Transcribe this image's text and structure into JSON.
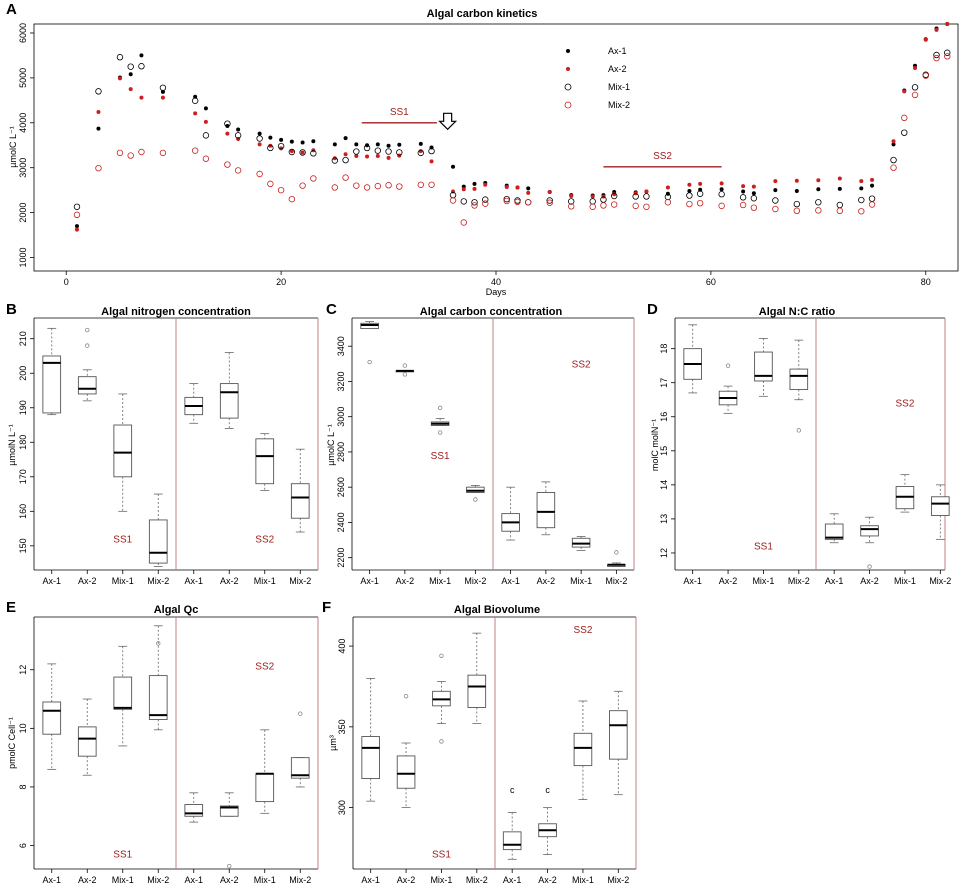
{
  "colors": {
    "black": "#000000",
    "red": "#cc1f1f",
    "divider": "#c08080",
    "box": "#555555",
    "ss_text": "#a02020"
  },
  "chart_data": [
    {
      "id": "A",
      "type": "scatter",
      "letter": "A",
      "title": "Algal carbon kinetics",
      "xlabel": "Days",
      "ylabel": "µmolC L⁻¹",
      "xlim": [
        -3,
        83
      ],
      "ylim": [
        700,
        6200
      ],
      "xticks": [
        "0",
        "20",
        "40",
        "60",
        "80"
      ],
      "yticks": [
        "1000",
        "2000",
        "3000",
        "4000",
        "5000",
        "6000"
      ],
      "annotations": [
        {
          "text": "SS1",
          "x1": 27.5,
          "x2": 34.5,
          "y": 4000
        },
        {
          "text": "SS2",
          "x1": 50.0,
          "x2": 61.0,
          "y": 3020
        }
      ],
      "arrow": {
        "x": 35.5,
        "y": 3900
      },
      "series": [
        {
          "name": "Ax-1",
          "style": "filled-black",
          "x": [
            1,
            3,
            5,
            6,
            7,
            9,
            12,
            13,
            15,
            16,
            18,
            19,
            20,
            21,
            22,
            23,
            25,
            26,
            27,
            28,
            29,
            30,
            31,
            33,
            34,
            36,
            37,
            38,
            39,
            41,
            42,
            43,
            45,
            47,
            49,
            50,
            51,
            53,
            54,
            56,
            58,
            59,
            61,
            63,
            64,
            66,
            68,
            70,
            72,
            74,
            75,
            77,
            78,
            79,
            80,
            81,
            82
          ],
          "y": [
            1700,
            3870,
            5010,
            5080,
            5500,
            4690,
            4580,
            4320,
            3930,
            3850,
            3760,
            3670,
            3620,
            3580,
            3560,
            3590,
            3520,
            3660,
            3520,
            3500,
            3520,
            3490,
            3510,
            3530,
            3450,
            3020,
            2580,
            2640,
            2660,
            2600,
            2560,
            2540,
            2460,
            2390,
            2380,
            2390,
            2460,
            2450,
            2470,
            2420,
            2480,
            2510,
            2520,
            2470,
            2430,
            2500,
            2480,
            2520,
            2530,
            2540,
            2600,
            3520,
            4720,
            5270,
            5860,
            6100,
            6200
          ]
        },
        {
          "name": "Ax-2",
          "style": "filled-red",
          "x": [
            1,
            3,
            5,
            6,
            7,
            9,
            12,
            13,
            15,
            16,
            18,
            19,
            20,
            21,
            22,
            23,
            25,
            26,
            27,
            28,
            29,
            30,
            31,
            33,
            34,
            36,
            37,
            38,
            39,
            41,
            42,
            43,
            45,
            47,
            49,
            50,
            51,
            53,
            54,
            56,
            58,
            59,
            61,
            63,
            64,
            66,
            68,
            70,
            72,
            74,
            75,
            77,
            78,
            79,
            80,
            81,
            82
          ],
          "y": [
            1620,
            4240,
            4990,
            4750,
            4560,
            4560,
            4210,
            4020,
            3760,
            3640,
            3520,
            3490,
            3430,
            3370,
            3340,
            3390,
            3210,
            3300,
            3260,
            3250,
            3260,
            3220,
            3270,
            3370,
            3140,
            2470,
            2520,
            2530,
            2620,
            2570,
            2560,
            2440,
            2460,
            2370,
            2360,
            2360,
            2410,
            2430,
            2470,
            2560,
            2620,
            2640,
            2650,
            2590,
            2580,
            2700,
            2710,
            2720,
            2760,
            2700,
            2730,
            3590,
            4700,
            5220,
            5850,
            6070,
            6200
          ]
        },
        {
          "name": "Mix-1",
          "style": "open-black",
          "x": [
            1,
            3,
            5,
            6,
            7,
            9,
            12,
            13,
            15,
            16,
            18,
            19,
            20,
            21,
            22,
            23,
            25,
            26,
            27,
            28,
            29,
            30,
            31,
            33,
            34,
            36,
            37,
            38,
            39,
            41,
            42,
            43,
            45,
            47,
            49,
            50,
            51,
            53,
            54,
            56,
            58,
            59,
            61,
            63,
            64,
            66,
            68,
            70,
            72,
            74,
            75,
            77,
            78,
            79,
            80,
            81,
            82
          ],
          "y": [
            2130,
            4700,
            5460,
            5250,
            5260,
            4780,
            4490,
            3720,
            3980,
            3720,
            3650,
            3440,
            3480,
            3350,
            3340,
            3320,
            3160,
            3170,
            3360,
            3440,
            3380,
            3360,
            3340,
            3330,
            3370,
            2390,
            2250,
            2230,
            2290,
            2300,
            2270,
            2230,
            2270,
            2250,
            2250,
            2290,
            2370,
            2360,
            2360,
            2350,
            2380,
            2420,
            2410,
            2340,
            2320,
            2270,
            2190,
            2230,
            2170,
            2280,
            2310,
            3170,
            3780,
            4790,
            5070,
            5510,
            5560
          ]
        },
        {
          "name": "Mix-2",
          "style": "open-red",
          "x": [
            1,
            3,
            5,
            6,
            7,
            9,
            12,
            13,
            15,
            16,
            18,
            19,
            20,
            21,
            22,
            23,
            25,
            26,
            27,
            28,
            29,
            30,
            31,
            33,
            34,
            36,
            37,
            38,
            39,
            41,
            42,
            43,
            45,
            47,
            49,
            50,
            51,
            53,
            54,
            56,
            58,
            59,
            61,
            63,
            64,
            66,
            68,
            70,
            72,
            74,
            75,
            77,
            78,
            79,
            80,
            81,
            82
          ],
          "y": [
            1950,
            2990,
            3330,
            3270,
            3350,
            3330,
            3380,
            3200,
            3070,
            2940,
            2860,
            2640,
            2500,
            2300,
            2600,
            2760,
            2560,
            2780,
            2600,
            2560,
            2590,
            2610,
            2580,
            2620,
            2620,
            2270,
            1780,
            2160,
            2200,
            2260,
            2240,
            2230,
            2220,
            2140,
            2130,
            2160,
            2180,
            2150,
            2130,
            2230,
            2190,
            2210,
            2150,
            2170,
            2110,
            2080,
            2040,
            2050,
            2040,
            2030,
            2180,
            3000,
            4110,
            4620,
            5050,
            5440,
            5480
          ]
        }
      ]
    },
    {
      "id": "B",
      "type": "box",
      "letter": "B",
      "title": "Algal nitrogen concentration",
      "ylabel": "µmolN L⁻¹",
      "ylim": [
        143,
        216
      ],
      "yticks": [
        150,
        160,
        170,
        180,
        190,
        200,
        210
      ],
      "categories": [
        "Ax-1",
        "Ax-2",
        "Mix-1",
        "Mix-2",
        "Ax-1",
        "Ax-2",
        "Mix-1",
        "Mix-2"
      ],
      "ss_labels": [
        {
          "text": "SS1",
          "cat": 2.5,
          "y": 151
        },
        {
          "text": "SS2",
          "cat": 6.5,
          "y": 151
        }
      ],
      "boxes": [
        {
          "min": 188,
          "q1": 188.5,
          "median": 203,
          "q3": 205,
          "max": 213,
          "out": []
        },
        {
          "min": 192,
          "q1": 194,
          "median": 195.5,
          "q3": 199,
          "max": 201,
          "out": [
            208,
            212.5
          ]
        },
        {
          "min": 160,
          "q1": 170,
          "median": 177,
          "q3": 185,
          "max": 194,
          "out": []
        },
        {
          "min": 144,
          "q1": 145,
          "median": 148,
          "q3": 157.5,
          "max": 165,
          "out": []
        },
        {
          "min": 185.5,
          "q1": 188,
          "median": 190.5,
          "q3": 193,
          "max": 197,
          "out": []
        },
        {
          "min": 184,
          "q1": 187,
          "median": 194.5,
          "q3": 197,
          "max": 206,
          "out": []
        },
        {
          "min": 166,
          "q1": 168,
          "median": 176,
          "q3": 181,
          "max": 182.5,
          "out": []
        },
        {
          "min": 154,
          "q1": 158,
          "median": 164,
          "q3": 168,
          "max": 178,
          "out": []
        }
      ]
    },
    {
      "id": "C",
      "type": "box",
      "letter": "C",
      "title": "Algal carbon concentration",
      "ylabel": "µmolC L⁻¹",
      "ylim": [
        2130,
        3560
      ],
      "yticks": [
        2200,
        2400,
        2600,
        2800,
        3000,
        3200,
        3400
      ],
      "categories": [
        "Ax-1",
        "Ax-2",
        "Mix-1",
        "Mix-2",
        "Ax-1",
        "Ax-2",
        "Mix-1",
        "Mix-2"
      ],
      "ss_labels": [
        {
          "text": "SS1",
          "cat": 2.5,
          "y": 2760
        },
        {
          "text": "SS2",
          "cat": 6.5,
          "y": 3280
        }
      ],
      "boxes": [
        {
          "min": 3500,
          "q1": 3500,
          "median": 3520,
          "q3": 3530,
          "max": 3540,
          "out": [
            3310
          ]
        },
        {
          "min": 3260,
          "q1": 3260,
          "median": 3260,
          "q3": 3260,
          "max": 3260,
          "out": [
            3290,
            3240
          ]
        },
        {
          "min": 2950,
          "q1": 2950,
          "median": 2960,
          "q3": 2970,
          "max": 2990,
          "out": [
            3050,
            2910
          ]
        },
        {
          "min": 2570,
          "q1": 2570,
          "median": 2580,
          "q3": 2600,
          "max": 2610,
          "out": [
            2530
          ]
        },
        {
          "min": 2300,
          "q1": 2350,
          "median": 2400,
          "q3": 2450,
          "max": 2600,
          "out": []
        },
        {
          "min": 2330,
          "q1": 2370,
          "median": 2460,
          "q3": 2570,
          "max": 2630,
          "out": []
        },
        {
          "min": 2240,
          "q1": 2260,
          "median": 2280,
          "q3": 2310,
          "max": 2320,
          "out": []
        },
        {
          "min": 2150,
          "q1": 2150,
          "median": 2160,
          "q3": 2160,
          "max": 2170,
          "out": [
            2230
          ]
        }
      ]
    },
    {
      "id": "D",
      "type": "box",
      "letter": "D",
      "title": "Algal N:C ratio",
      "ylabel": "molC molN⁻¹",
      "ylim": [
        11.5,
        18.9
      ],
      "yticks": [
        12,
        13,
        14,
        15,
        16,
        17,
        18
      ],
      "categories": [
        "Ax-1",
        "Ax-2",
        "Mix-1",
        "Mix-2",
        "Ax-1",
        "Ax-2",
        "Mix-1",
        "Mix-2"
      ],
      "ss_labels": [
        {
          "text": "SS1",
          "cat": 2.5,
          "y": 12.1
        },
        {
          "text": "SS2",
          "cat": 6.5,
          "y": 16.3
        }
      ],
      "boxes": [
        {
          "min": 16.7,
          "q1": 17.1,
          "median": 17.55,
          "q3": 18.0,
          "max": 18.7,
          "out": []
        },
        {
          "min": 16.1,
          "q1": 16.35,
          "median": 16.55,
          "q3": 16.75,
          "max": 16.9,
          "out": [
            17.5
          ]
        },
        {
          "min": 16.6,
          "q1": 17.05,
          "median": 17.2,
          "q3": 17.9,
          "max": 18.3,
          "out": []
        },
        {
          "min": 16.5,
          "q1": 16.8,
          "median": 17.2,
          "q3": 17.4,
          "max": 18.25,
          "out": [
            15.6
          ]
        },
        {
          "min": 12.3,
          "q1": 12.4,
          "median": 12.45,
          "q3": 12.85,
          "max": 13.15,
          "out": []
        },
        {
          "min": 12.3,
          "q1": 12.5,
          "median": 12.7,
          "q3": 12.8,
          "max": 13.05,
          "out": [
            11.6
          ]
        },
        {
          "min": 13.2,
          "q1": 13.3,
          "median": 13.65,
          "q3": 13.95,
          "max": 14.3,
          "out": []
        },
        {
          "min": 12.4,
          "q1": 13.1,
          "median": 13.45,
          "q3": 13.65,
          "max": 14.0,
          "out": []
        }
      ]
    },
    {
      "id": "E",
      "type": "box",
      "letter": "E",
      "title": "Algal Qc",
      "ylabel": "pmolC Cell⁻¹",
      "ylim": [
        5.2,
        13.8
      ],
      "yticks": [
        6,
        8,
        10,
        12
      ],
      "categories": [
        "Ax-1",
        "Ax-2",
        "Mix-1",
        "Mix-2",
        "Ax-1",
        "Ax-2",
        "Mix-1",
        "Mix-2"
      ],
      "ss_labels": [
        {
          "text": "SS1",
          "cat": 2.5,
          "y": 5.6
        },
        {
          "text": "SS2",
          "cat": 6.5,
          "y": 12.0
        }
      ],
      "boxes": [
        {
          "min": 8.6,
          "q1": 9.8,
          "median": 10.6,
          "q3": 10.9,
          "max": 12.2,
          "out": []
        },
        {
          "min": 8.4,
          "q1": 9.05,
          "median": 9.65,
          "q3": 10.05,
          "max": 11.0,
          "out": []
        },
        {
          "min": 9.4,
          "q1": 10.65,
          "median": 10.7,
          "q3": 11.75,
          "max": 12.8,
          "out": []
        },
        {
          "min": 9.95,
          "q1": 10.3,
          "median": 10.45,
          "q3": 11.8,
          "max": 13.5,
          "out": [
            12.9
          ]
        },
        {
          "min": 6.8,
          "q1": 7.0,
          "median": 7.1,
          "q3": 7.4,
          "max": 7.8,
          "out": []
        },
        {
          "min": 7.0,
          "q1": 7.0,
          "median": 7.3,
          "q3": 7.35,
          "max": 7.8,
          "out": [
            5.3
          ]
        },
        {
          "min": 7.1,
          "q1": 7.5,
          "median": 8.45,
          "q3": 8.45,
          "max": 9.95,
          "out": []
        },
        {
          "min": 8.0,
          "q1": 8.3,
          "median": 8.4,
          "q3": 9.0,
          "max": 9.0,
          "out": [
            10.5
          ]
        }
      ]
    },
    {
      "id": "F",
      "type": "box",
      "letter": "F",
      "title": "Algal Biovolume",
      "ylabel": "µm³",
      "ylim": [
        262,
        418
      ],
      "yticks": [
        300,
        350,
        400
      ],
      "categories": [
        "Ax-1",
        "Ax-2",
        "Mix-1",
        "Mix-2",
        "Ax-1",
        "Ax-2",
        "Mix-1",
        "Mix-2"
      ],
      "ss_labels": [
        {
          "text": "SS1",
          "cat": 2.5,
          "y": 269
        },
        {
          "text": "SS2",
          "cat": 6.5,
          "y": 408
        }
      ],
      "letters": [
        {
          "text": "c",
          "cat": 5,
          "y": 309
        },
        {
          "text": "c",
          "cat": 6,
          "y": 309
        }
      ],
      "boxes": [
        {
          "min": 304,
          "q1": 318,
          "median": 337,
          "q3": 344,
          "max": 380,
          "out": []
        },
        {
          "min": 300,
          "q1": 312,
          "median": 321,
          "q3": 332,
          "max": 340,
          "out": [
            369
          ]
        },
        {
          "min": 352,
          "q1": 363,
          "median": 367,
          "q3": 372,
          "max": 378,
          "out": [
            394,
            341
          ]
        },
        {
          "min": 352,
          "q1": 362,
          "median": 375,
          "q3": 382,
          "max": 408,
          "out": []
        },
        {
          "min": 268,
          "q1": 274,
          "median": 277,
          "q3": 285,
          "max": 297,
          "out": []
        },
        {
          "min": 271,
          "q1": 282,
          "median": 286,
          "q3": 290,
          "max": 300,
          "out": []
        },
        {
          "min": 305,
          "q1": 326,
          "median": 337,
          "q3": 346,
          "max": 366,
          "out": []
        },
        {
          "min": 308,
          "q1": 330,
          "median": 351,
          "q3": 360,
          "max": 372,
          "out": []
        }
      ]
    }
  ]
}
